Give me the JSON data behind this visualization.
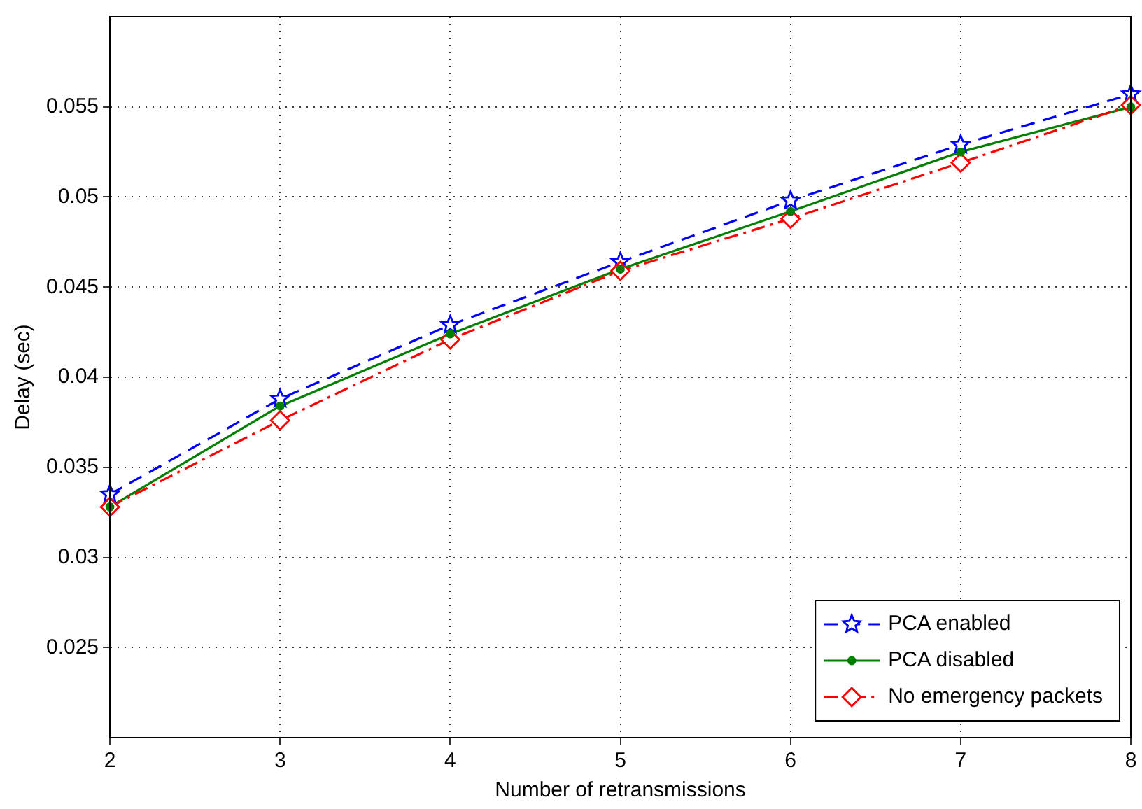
{
  "chart_data": {
    "type": "line",
    "xlabel": "Number of retransmissions",
    "ylabel": "Delay (sec)",
    "x": [
      2,
      3,
      4,
      5,
      6,
      7,
      8
    ],
    "series": [
      {
        "name": "PCA enabled",
        "color": "#0000ff",
        "marker": "star",
        "line_style": "dashed",
        "values": [
          0.0335,
          0.0388,
          0.0429,
          0.0464,
          0.0498,
          0.0529,
          0.0557
        ]
      },
      {
        "name": "PCA disabled",
        "color": "#008000",
        "marker": "circle",
        "line_style": "solid",
        "values": [
          0.0328,
          0.0384,
          0.0424,
          0.046,
          0.0492,
          0.0525,
          0.055
        ]
      },
      {
        "name": "No emergency packets",
        "color": "#ff0000",
        "marker": "diamond",
        "line_style": "dashed",
        "values": [
          0.0328,
          0.0376,
          0.0421,
          0.0459,
          0.0488,
          0.0519,
          0.0551
        ]
      }
    ],
    "xlim": [
      2,
      8
    ],
    "xticks": [
      2,
      3,
      4,
      5,
      6,
      7,
      8
    ],
    "ylim": [
      0.02,
      0.06
    ],
    "yticks": [
      0.025,
      0.03,
      0.035,
      0.04,
      0.045,
      0.05,
      0.055
    ],
    "grid": true,
    "legend": "bottom right"
  }
}
